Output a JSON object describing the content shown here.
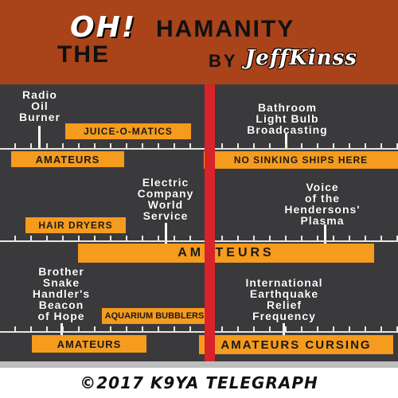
{
  "header": {
    "oh": "OH!",
    "the": "THE",
    "hamanity": "HAMANITY",
    "by": "BY",
    "signature": "JeffKinss"
  },
  "stations": {
    "radio_oil_burner": [
      "Radio",
      "Oil",
      "Burner"
    ],
    "bathroom": [
      "Bathroom",
      "Light Bulb",
      "Broadcasting"
    ],
    "electric": [
      "Electric",
      "Company",
      "World",
      "Service"
    ],
    "voice": [
      "Voice",
      "of the",
      "Hendersons'",
      "Plasma"
    ],
    "brother": [
      "Brother",
      "Snake",
      "Handler's",
      "Beacon",
      "of Hope"
    ],
    "international": [
      "International",
      "Earthquake",
      "Relief",
      "Frequency"
    ]
  },
  "bars": {
    "juice": "JUICE-O-MATICS",
    "amateurs1": "AMATEURS",
    "no_sinking": "NO SINKING SHIPS HERE",
    "hair_dryers": "HAIR DRYERS",
    "amateurs2": "AMATEURS",
    "aquarium": "AQUARIUM BUBBLERS",
    "amateurs3": "AMATEURS",
    "amateurs_cursing": "AMATEURS CURSING"
  },
  "footer": {
    "copyright": "©2017 K9YA TELEGRAPH"
  },
  "colors": {
    "header_bg": "#a8431a",
    "band_bg": "#3a3a3d",
    "bar": "#f59b1d",
    "needle": "#d8232a"
  }
}
